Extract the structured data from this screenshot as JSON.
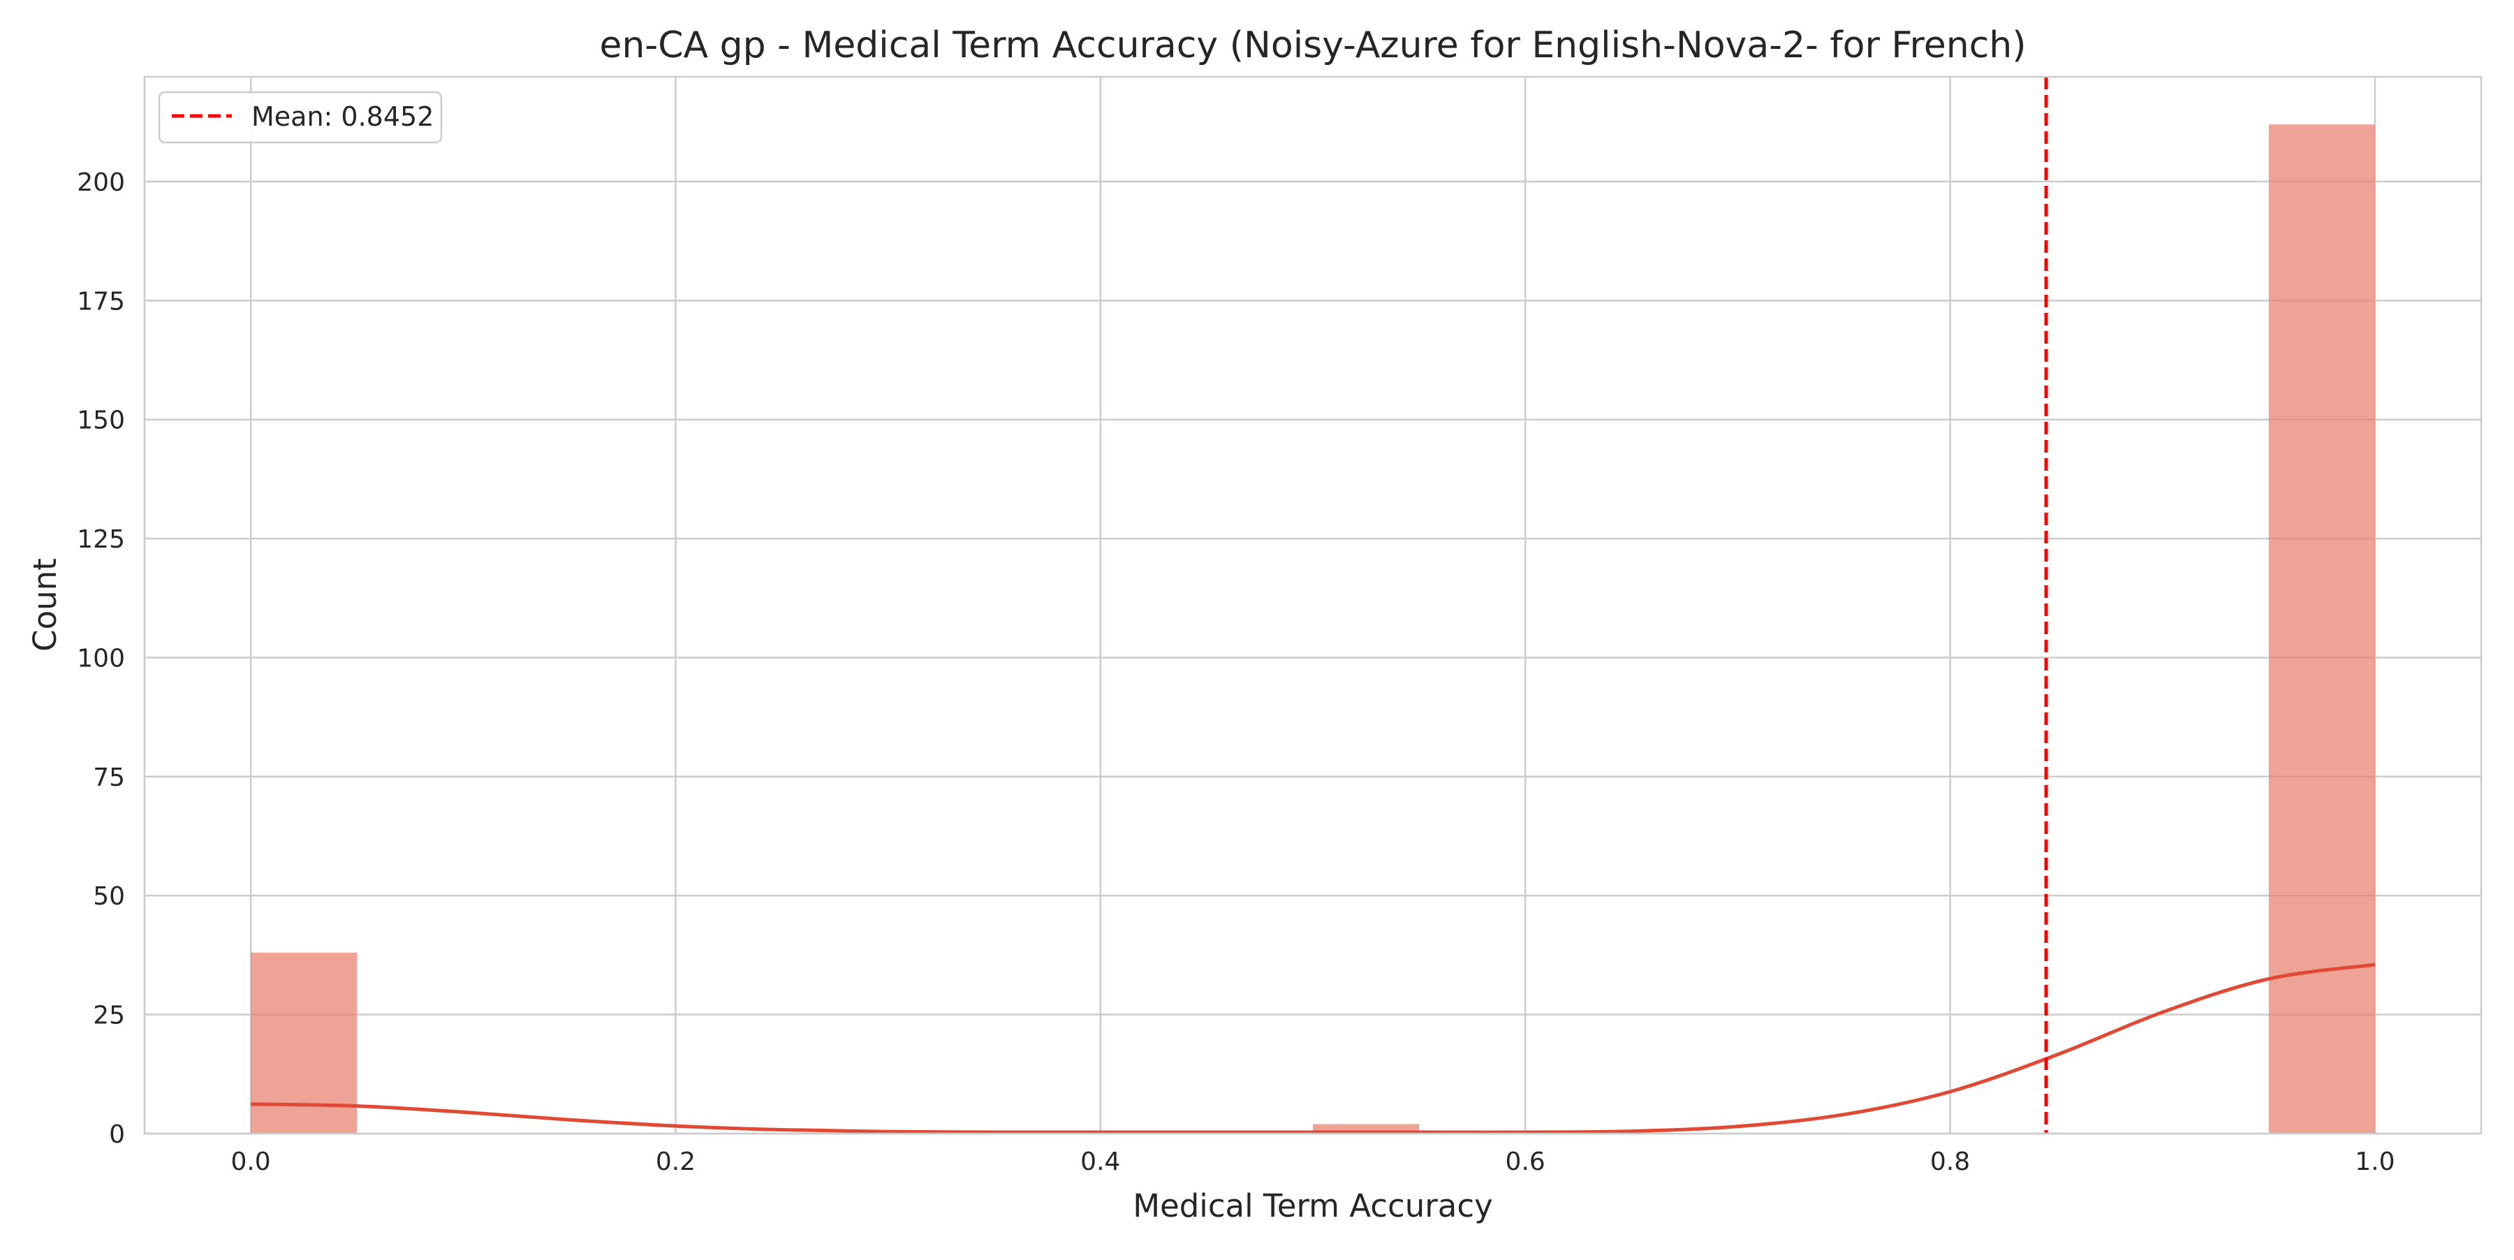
{
  "chart_data": {
    "type": "bar",
    "title": "en-CA gp - Medical Term Accuracy (Noisy-Azure for English-Nova-2- for French)",
    "xlabel": "Medical Term Accuracy",
    "ylabel": "Count",
    "xlim": [
      -0.05,
      1.05
    ],
    "ylim": [
      0,
      222
    ],
    "xticks": [
      "0.0",
      "0.2",
      "0.4",
      "0.6",
      "0.8",
      "1.0"
    ],
    "xtick_values": [
      0.0,
      0.2,
      0.4,
      0.6,
      0.8,
      1.0
    ],
    "yticks": [
      "0",
      "25",
      "50",
      "75",
      "100",
      "125",
      "150",
      "175",
      "200"
    ],
    "ytick_values": [
      0,
      25,
      50,
      75,
      100,
      125,
      150,
      175,
      200
    ],
    "grid": true,
    "legend_position": "upper-left",
    "bar_color": "#e8806e",
    "kde_color": "#e04a35",
    "mean_line_color": "#ff0000",
    "bins": [
      {
        "start": 0.0,
        "end": 0.05,
        "count": 38
      },
      {
        "start": 0.05,
        "end": 0.1,
        "count": 0
      },
      {
        "start": 0.1,
        "end": 0.15,
        "count": 0
      },
      {
        "start": 0.15,
        "end": 0.2,
        "count": 0
      },
      {
        "start": 0.2,
        "end": 0.25,
        "count": 0
      },
      {
        "start": 0.25,
        "end": 0.3,
        "count": 0
      },
      {
        "start": 0.3,
        "end": 0.35,
        "count": 0
      },
      {
        "start": 0.35,
        "end": 0.4,
        "count": 0
      },
      {
        "start": 0.4,
        "end": 0.45,
        "count": 0
      },
      {
        "start": 0.45,
        "end": 0.5,
        "count": 0
      },
      {
        "start": 0.5,
        "end": 0.55,
        "count": 2
      },
      {
        "start": 0.55,
        "end": 0.6,
        "count": 0
      },
      {
        "start": 0.6,
        "end": 0.65,
        "count": 0
      },
      {
        "start": 0.65,
        "end": 0.7,
        "count": 0
      },
      {
        "start": 0.7,
        "end": 0.75,
        "count": 0
      },
      {
        "start": 0.75,
        "end": 0.8,
        "count": 0
      },
      {
        "start": 0.8,
        "end": 0.85,
        "count": 0
      },
      {
        "start": 0.85,
        "end": 0.9,
        "count": 0
      },
      {
        "start": 0.9,
        "end": 0.95,
        "count": 0
      },
      {
        "start": 0.95,
        "end": 1.0,
        "count": 212
      }
    ],
    "kde": {
      "x": [
        0.0,
        0.05,
        0.1,
        0.15,
        0.2,
        0.25,
        0.3,
        0.35,
        0.4,
        0.45,
        0.5,
        0.55,
        0.6,
        0.65,
        0.7,
        0.75,
        0.8,
        0.85,
        0.9,
        0.95,
        1.0
      ],
      "y": [
        6.2,
        5.8,
        4.5,
        2.9,
        1.6,
        0.8,
        0.4,
        0.3,
        0.3,
        0.3,
        0.3,
        0.3,
        0.3,
        0.5,
        1.5,
        4.0,
        8.8,
        16.5,
        25.5,
        32.5,
        35.5
      ]
    },
    "mean": 0.8452,
    "legend": {
      "mean_label": "Mean: 0.8452"
    }
  }
}
